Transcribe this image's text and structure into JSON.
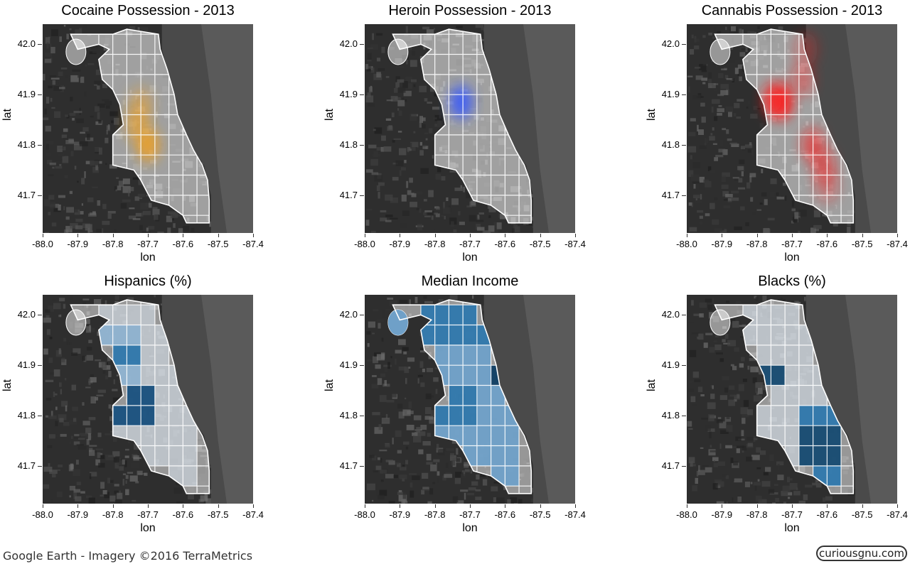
{
  "panels": [
    {
      "title": "Cocaine Possession - 2013",
      "kind": "density",
      "color": "#f0a020",
      "hotspots": [
        [
          -87.72,
          41.88,
          0.55
        ],
        [
          -87.7,
          41.8,
          1.0
        ],
        [
          -87.73,
          41.84,
          0.7
        ]
      ]
    },
    {
      "title": "Heroin Possession - 2013",
      "kind": "density",
      "color": "#3355ff",
      "hotspots": [
        [
          -87.725,
          41.885,
          1.0
        ]
      ]
    },
    {
      "title": "Cannabis Possession - 2013",
      "kind": "density",
      "color": "#ff1a1a",
      "hotspots": [
        [
          -87.73,
          41.885,
          1.0
        ],
        [
          -87.75,
          41.89,
          0.8
        ],
        [
          -87.64,
          41.8,
          0.65
        ],
        [
          -87.61,
          41.76,
          0.55
        ],
        [
          -87.67,
          41.93,
          0.45
        ],
        [
          -87.66,
          41.99,
          0.35
        ],
        [
          -87.6,
          41.72,
          0.4
        ]
      ]
    },
    {
      "title": "Hispanics (%)",
      "kind": "choropleth",
      "color": "#1a5f94",
      "levels": [
        "#d8e4ee",
        "#8fb3d1",
        "#2f78ad",
        "#19517f"
      ]
    },
    {
      "title": "Median Income",
      "kind": "choropleth",
      "color": "#1a5f94",
      "levels": [
        "#c8d9e8",
        "#6fa0c8",
        "#2f78ad",
        "#0f3e64"
      ]
    },
    {
      "title": "Blacks (%)",
      "kind": "choropleth",
      "color": "#1a5f94",
      "levels": [
        "#d8e4ee",
        "#8fb3d1",
        "#2f78ad",
        "#164b72"
      ]
    }
  ],
  "axes": {
    "xlabel": "lon",
    "ylabel": "lat",
    "xticks": [
      "-88.0",
      "-87.9",
      "-87.8",
      "-87.7",
      "-87.6",
      "-87.5",
      "-87.4"
    ],
    "yticks": [
      "42.0",
      "41.9",
      "41.8",
      "41.7"
    ]
  },
  "attribution": "Google Earth - Imagery ©2016 TerraMetrics",
  "logo": "curiousgnu.com"
}
